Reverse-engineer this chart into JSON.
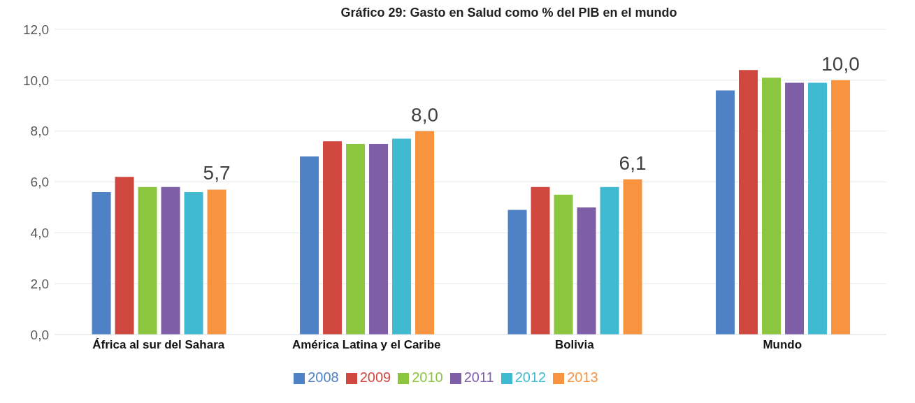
{
  "chart_data": {
    "type": "bar",
    "title": "Gráfico 29: Gasto en Salud como % del PIB en el mundo",
    "categories": [
      "África al sur del Sahara",
      "América Latina y el Caribe",
      "Bolivia",
      "Mundo"
    ],
    "series": [
      {
        "name": "2008",
        "color": "#4f81c7",
        "values": [
          5.6,
          7.0,
          4.9,
          9.6
        ]
      },
      {
        "name": "2009",
        "color": "#d0473f",
        "values": [
          6.2,
          7.6,
          5.8,
          10.4
        ]
      },
      {
        "name": "2010",
        "color": "#8cc63e",
        "values": [
          5.8,
          7.5,
          5.5,
          10.1
        ]
      },
      {
        "name": "2011",
        "color": "#7f5ea8",
        "values": [
          5.8,
          7.5,
          5.0,
          9.9
        ]
      },
      {
        "name": "2012",
        "color": "#3fbad0",
        "values": [
          5.6,
          7.7,
          5.8,
          9.9
        ]
      },
      {
        "name": "2013",
        "color": "#f89440",
        "values": [
          5.7,
          8.0,
          6.1,
          10.0
        ],
        "value_labels": [
          "5,7",
          "8,0",
          "6,1",
          "10,0"
        ]
      }
    ],
    "ylim": [
      0,
      12
    ],
    "yticks": [
      {
        "value": 0,
        "label": "0,0"
      },
      {
        "value": 2,
        "label": "2,0"
      },
      {
        "value": 4,
        "label": "4,0"
      },
      {
        "value": 6,
        "label": "6,0"
      },
      {
        "value": 8,
        "label": "8,0"
      },
      {
        "value": 10,
        "label": "10,0"
      },
      {
        "value": 12,
        "label": "12,0"
      }
    ],
    "grid": "y",
    "legend": "bottom"
  }
}
